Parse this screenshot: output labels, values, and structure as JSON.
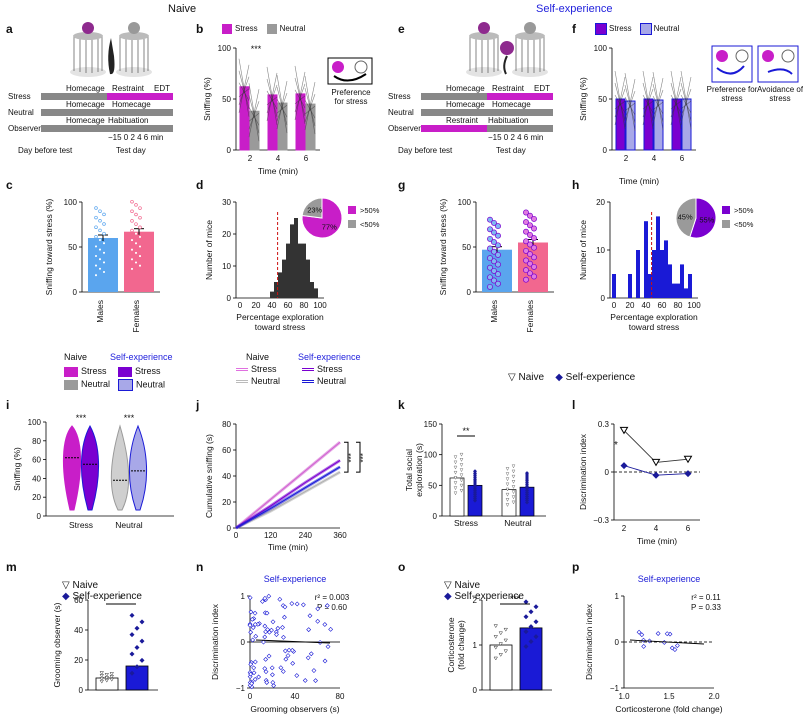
{
  "sections": {
    "naive": "Naive",
    "self_experience": "Self-experience"
  },
  "panels": {
    "a": "a",
    "b": "b",
    "c": "c",
    "d": "d",
    "e": "e",
    "f": "f",
    "g": "g",
    "h": "h",
    "i": "i",
    "j": "j",
    "k": "k",
    "l": "l",
    "m": "m",
    "n": "n",
    "o": "o",
    "p": "p"
  },
  "colors": {
    "stress": "#c81ec8",
    "neutral": "#9a9a9a",
    "self_stress": "#7a00d0",
    "self_neutral": "#a8a8e8",
    "male": "#5aa5ee",
    "female": "#f2678f",
    "blue": "#1a1ad6",
    "navy": "#1a1a9a",
    "red_dash": "#cc1111"
  },
  "schematic_a": {
    "rows": [
      "Stress",
      "Neutral",
      "Observer"
    ],
    "homecage": "Homecage",
    "restraint": "Restraint",
    "edt": "EDT",
    "habituation": "Habituation",
    "timeline": "−15       0  2  4  6  min",
    "day_before": "Day before test",
    "test_day": "Test day"
  },
  "schematic_e": {
    "rows": [
      "Stress",
      "Neutral",
      "Observer"
    ],
    "homecage": "Homecage",
    "restraint": "Restraint",
    "edt": "EDT",
    "habituation": "Habituation",
    "timeline": "−15       0  2  4  6  min",
    "day_before": "Day before test",
    "test_day": "Test day"
  },
  "legend": {
    "stress": "Stress",
    "neutral": "Neutral",
    "naive": "Naive",
    "self": "Self-experience"
  },
  "pref_b": "Preference for stress",
  "pref_f1": "Preference for stress",
  "pref_f2": "Avoidance of stress",
  "chart_data": [
    {
      "panel": "b",
      "type": "bar",
      "title": "",
      "ylabel": "Sniffing (%)",
      "xlabel": "Time (min)",
      "categories": [
        "2",
        "4",
        "6"
      ],
      "ylim": [
        0,
        100
      ],
      "yticks": [
        "0",
        "50",
        "100"
      ],
      "series": [
        {
          "name": "Stress",
          "values": [
            62,
            54,
            55
          ]
        },
        {
          "name": "Neutral",
          "values": [
            38,
            46,
            45
          ]
        }
      ],
      "annotation": "***"
    },
    {
      "panel": "c",
      "type": "bar",
      "ylabel": "Sniffing toward stress (%)",
      "categories": [
        "Males",
        "Females"
      ],
      "values": [
        60,
        67
      ],
      "ylim": [
        0,
        100
      ],
      "yticks": [
        "0",
        "50",
        "100"
      ]
    },
    {
      "panel": "d",
      "type": "bar",
      "ylabel": "Number of mice",
      "xlabel": "Percentage exploration toward stress",
      "categories": [
        "0",
        "10",
        "20",
        "30",
        "40",
        "45",
        "50",
        "55",
        "60",
        "65",
        "70",
        "75",
        "80",
        "85",
        "90",
        "95",
        "100"
      ],
      "values": [
        0,
        0,
        0,
        0,
        2,
        5,
        8,
        12,
        17,
        23,
        25,
        17,
        17,
        12,
        5,
        3,
        0
      ],
      "ylim": [
        0,
        30
      ],
      "yticks": [
        "0",
        "10",
        "20",
        "30"
      ],
      "xticks": [
        "0",
        "20",
        "40",
        "60",
        "80",
        "100"
      ],
      "pie": {
        "slices": [
          {
            "label": ">50%",
            "value": 77,
            "text": "77%"
          },
          {
            "label": "<50%",
            "value": 23,
            "text": "23%"
          }
        ]
      }
    },
    {
      "panel": "f",
      "type": "bar",
      "ylabel": "Sniffing (%)",
      "xlabel": "",
      "categories": [
        "2",
        "4",
        "6"
      ],
      "ylim": [
        0,
        100
      ],
      "yticks": [
        "0",
        "50",
        "100"
      ],
      "series": [
        {
          "name": "Stress",
          "values": [
            50,
            50,
            50
          ]
        },
        {
          "name": "Neutral",
          "values": [
            48,
            49,
            50
          ]
        }
      ]
    },
    {
      "panel": "g",
      "type": "bar",
      "ylabel": "Sniffing toward stress (%)",
      "categories": [
        "Males",
        "Females"
      ],
      "values": [
        47,
        55
      ],
      "ylim": [
        0,
        100
      ],
      "yticks": [
        "0",
        "50",
        "100"
      ]
    },
    {
      "panel": "h",
      "type": "bar",
      "ylabel": "Number of mice",
      "xlabel": "Percentage exploration toward stress",
      "categories": [
        "0",
        "10",
        "20",
        "30",
        "40",
        "45",
        "50",
        "55",
        "60",
        "65",
        "70",
        "75",
        "80",
        "85",
        "90",
        "95",
        "100"
      ],
      "values": [
        5,
        0,
        5,
        10,
        16,
        5,
        10,
        17,
        10,
        12,
        7,
        3,
        3,
        7,
        2,
        5,
        0
      ],
      "ylim": [
        0,
        20
      ],
      "yticks": [
        "0",
        "10",
        "20"
      ],
      "xticks": [
        "0",
        "20",
        "40",
        "60",
        "80",
        "100"
      ],
      "pie": {
        "slices": [
          {
            "label": ">50%",
            "value": 55,
            "text": "55%"
          },
          {
            "label": "<50%",
            "value": 45,
            "text": "45%"
          }
        ]
      }
    },
    {
      "panel": "i",
      "type": "violin",
      "ylabel": "Sniffing (%)",
      "categories": [
        "Stress",
        "Neutral"
      ],
      "ylim": [
        0,
        100
      ],
      "yticks": [
        "0",
        "20",
        "40",
        "60",
        "80",
        "100"
      ],
      "series": [
        {
          "name": "Naive Stress",
          "median": 62
        },
        {
          "name": "Self Stress",
          "median": 55
        },
        {
          "name": "Naive Neutral",
          "median": 38
        },
        {
          "name": "Self Neutral",
          "median": 48
        }
      ],
      "annotations": [
        "***",
        "***"
      ]
    },
    {
      "panel": "j",
      "type": "line",
      "ylabel": "Cumulative sniffing (s)",
      "xlabel": "Time (min)",
      "x": [
        0,
        120,
        240,
        360
      ],
      "ylim": [
        0,
        80
      ],
      "yticks": [
        "0",
        "20",
        "40",
        "60",
        "80"
      ],
      "xticks": [
        "0",
        "120",
        "240",
        "360"
      ],
      "series": [
        {
          "name": "Naive Stress",
          "values": [
            0,
            22,
            44,
            66
          ]
        },
        {
          "name": "Naive Neutral",
          "values": [
            0,
            13,
            28,
            43
          ]
        },
        {
          "name": "Self Stress",
          "values": [
            0,
            17,
            35,
            52
          ]
        },
        {
          "name": "Self Neutral",
          "values": [
            0,
            15,
            31,
            47
          ]
        }
      ],
      "annotations": [
        "***",
        "***"
      ]
    },
    {
      "panel": "k",
      "type": "bar",
      "ylabel": "Total social exploration (s)",
      "categories": [
        "Stress",
        "Neutral"
      ],
      "ylim": [
        0,
        150
      ],
      "yticks": [
        "0",
        "50",
        "100",
        "150"
      ],
      "series": [
        {
          "name": "Naive",
          "values": [
            62,
            43
          ]
        },
        {
          "name": "Self-experience",
          "values": [
            50,
            47
          ]
        }
      ],
      "annotation": "**"
    },
    {
      "panel": "l",
      "type": "line",
      "ylabel": "Discrimination index",
      "xlabel": "Time (min)",
      "x": [
        2,
        4,
        6
      ],
      "ylim": [
        -0.3,
        0.3
      ],
      "yticks": [
        "−0.3",
        "0",
        "0.3"
      ],
      "xticks": [
        "2",
        "4",
        "6"
      ],
      "series": [
        {
          "name": "Naive",
          "values": [
            0.26,
            0.06,
            0.08
          ]
        },
        {
          "name": "Self-experience",
          "values": [
            0.04,
            -0.02,
            -0.01
          ]
        }
      ],
      "annotation": "*"
    },
    {
      "panel": "m",
      "type": "bar",
      "ylabel": "Grooming observer (s)",
      "categories": [
        "Naive",
        "Self-experience"
      ],
      "values": [
        8,
        16
      ],
      "ylim": [
        0,
        60
      ],
      "yticks": [
        "0",
        "20",
        "40",
        "60"
      ],
      "annotation": "*"
    },
    {
      "panel": "n",
      "type": "scatter",
      "title": "Self-experience",
      "ylabel": "Discrimination index",
      "xlabel": "Grooming observers (s)",
      "xlim": [
        0,
        80
      ],
      "ylim": [
        -1,
        1
      ],
      "xticks": [
        "0",
        "40",
        "80"
      ],
      "yticks": [
        "−1",
        "0",
        "1"
      ],
      "stats": [
        "r² = 0.003",
        "P = 0.60"
      ]
    },
    {
      "panel": "o",
      "type": "bar",
      "ylabel": "Corticosterone (fold change)",
      "categories": [
        "Naive",
        "Self-experience"
      ],
      "values": [
        1.0,
        1.38
      ],
      "ylim": [
        0,
        2
      ],
      "yticks": [
        "0",
        "1",
        "2"
      ],
      "annotation": "***"
    },
    {
      "panel": "p",
      "type": "scatter",
      "title": "Self-experience",
      "ylabel": "Discrimination index",
      "xlabel": "Corticosterone (fold change)",
      "xlim": [
        1.0,
        2.0
      ],
      "ylim": [
        -1,
        1
      ],
      "xticks": [
        "1.0",
        "1.5",
        "2.0"
      ],
      "yticks": [
        "−1",
        "0",
        "1"
      ],
      "stats": [
        "r² = 0.11",
        "P = 0.33"
      ]
    }
  ]
}
